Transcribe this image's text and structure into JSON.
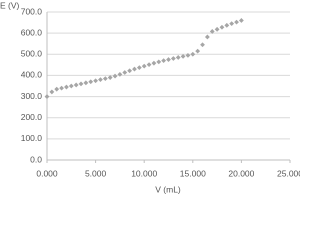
{
  "chart_data": {
    "type": "scatter",
    "x_label": "V (mL)",
    "y_label": "E (V)",
    "series": [
      {
        "color": "#a6a6a6",
        "x": [
          0,
          0.5,
          1,
          1.5,
          2,
          2.5,
          3,
          3.5,
          4,
          4.5,
          5,
          5.5,
          6,
          6.5,
          7,
          7.5,
          8,
          8.5,
          9,
          9.5,
          10,
          10.5,
          11,
          11.5,
          12,
          12.5,
          13,
          13.5,
          14,
          14.5,
          15,
          15.5,
          16,
          16.5,
          17,
          17.5,
          18,
          18.5,
          19,
          19.5,
          20
        ],
        "values": [
          300,
          322,
          335,
          340,
          345,
          350,
          355,
          360,
          365,
          370,
          375,
          380,
          385,
          390,
          397,
          405,
          414,
          422,
          430,
          437,
          444,
          451,
          458,
          464,
          470,
          475,
          480,
          485,
          490,
          495,
          500,
          515,
          545,
          582,
          608,
          618,
          628,
          637,
          645,
          652,
          660
        ]
      }
    ],
    "xlim": [
      0,
      25
    ],
    "xticks": [
      {
        "value": 0,
        "label": "0.000"
      },
      {
        "value": 5,
        "label": "5.000"
      },
      {
        "value": 10,
        "label": "10.000"
      },
      {
        "value": 15,
        "label": "15.000"
      },
      {
        "value": 20,
        "label": "20.000"
      },
      {
        "value": 25,
        "label": "25.000"
      }
    ],
    "ylim": [
      0,
      700
    ],
    "yticks": [
      {
        "value": 0,
        "label": "0.0"
      },
      {
        "value": 100,
        "label": "100.0"
      },
      {
        "value": 200,
        "label": "200.0"
      },
      {
        "value": 300,
        "label": "300.0"
      },
      {
        "value": 400,
        "label": "400.0"
      },
      {
        "value": 500,
        "label": "500.0"
      },
      {
        "value": 600,
        "label": "600.0"
      },
      {
        "value": 700,
        "label": "700.0"
      }
    ],
    "grid": true
  }
}
